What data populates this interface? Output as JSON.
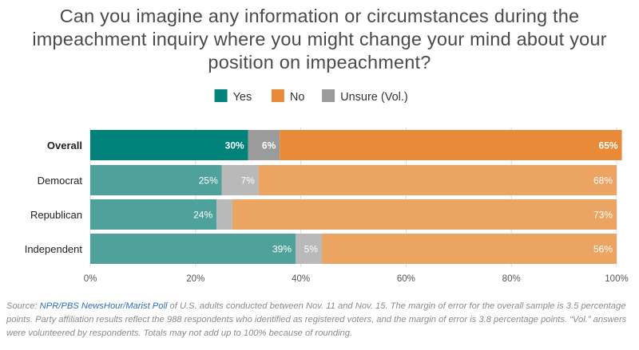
{
  "title": "Can you imagine any information or circumstances during the impeachment inquiry where you might change your mind about your position on impeachment?",
  "source": {
    "prefix": "Source: ",
    "link_text": "NPR/PBS NewsHour/Marist Poll",
    "rest": " of U.S. adults conducted between Nov. 11 and Nov. 15. The margin of error for the overall sample is 3.5 percentage points. Party affiliation results reflect the 988 respondents who identified as registered voters, and the margin of error is 3.8 percentage points. “Vol.” answers were volunteered by respondents. Totals may not add up to 100% because of rounding.",
    "link_color": "#2a6ebb"
  },
  "chart_data": {
    "type": "bar",
    "orientation": "horizontal",
    "stacked": true,
    "categories": [
      "Overall",
      "Democrat",
      "Republican",
      "Independent"
    ],
    "emphasized_category": "Overall",
    "series": [
      {
        "name": "Yes",
        "values": [
          30,
          25,
          24,
          39
        ],
        "color": "#00827a",
        "muted_color": "#4fa19b"
      },
      {
        "name": "No",
        "values": [
          65,
          68,
          73,
          56
        ],
        "color": "#e98a3a",
        "muted_color": "#eca462"
      },
      {
        "name": "Unsure (Vol.)",
        "values": [
          6,
          7,
          3,
          5
        ],
        "color": "#9b9b9b",
        "muted_color": "#b9b9b9"
      }
    ],
    "data_labels": [
      [
        "30%",
        "65%",
        "6%"
      ],
      [
        "25%",
        "68%",
        "7%"
      ],
      [
        "24%",
        "73%",
        ""
      ],
      [
        "39%",
        "56%",
        "5%"
      ]
    ],
    "x_ticks": [
      "0%",
      "20%",
      "40%",
      "60%",
      "80%",
      "100%"
    ],
    "xlim": [
      0,
      100
    ],
    "grid": "vertical",
    "legend_position": "top-center"
  }
}
